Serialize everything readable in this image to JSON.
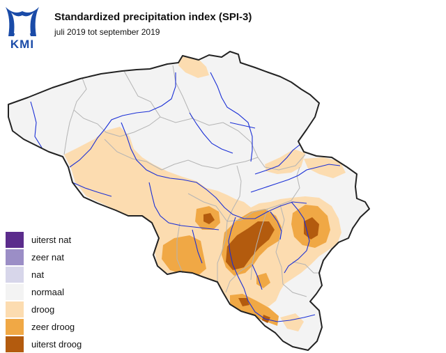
{
  "logo": {
    "text": "KMI"
  },
  "title": "Standardized precipitation index (SPI-3)",
  "subtitle": "juli 2019 tot september 2019",
  "legend": [
    {
      "label": "uiterst nat",
      "color": "#5b2c8c"
    },
    {
      "label": "zeer nat",
      "color": "#9b8ec6"
    },
    {
      "label": "nat",
      "color": "#d7d6ea"
    },
    {
      "label": "normaal",
      "color": "#f3f3f3"
    },
    {
      "label": "droog",
      "color": "#fcdcb0"
    },
    {
      "label": "zeer droog",
      "color": "#f0a845"
    },
    {
      "label": "uiterst droog",
      "color": "#b35b0e"
    }
  ],
  "colors": {
    "background": "#ffffff",
    "country_border": "#222222",
    "province_border": "#b4b4b4",
    "rivers": "#1a2fd6"
  }
}
